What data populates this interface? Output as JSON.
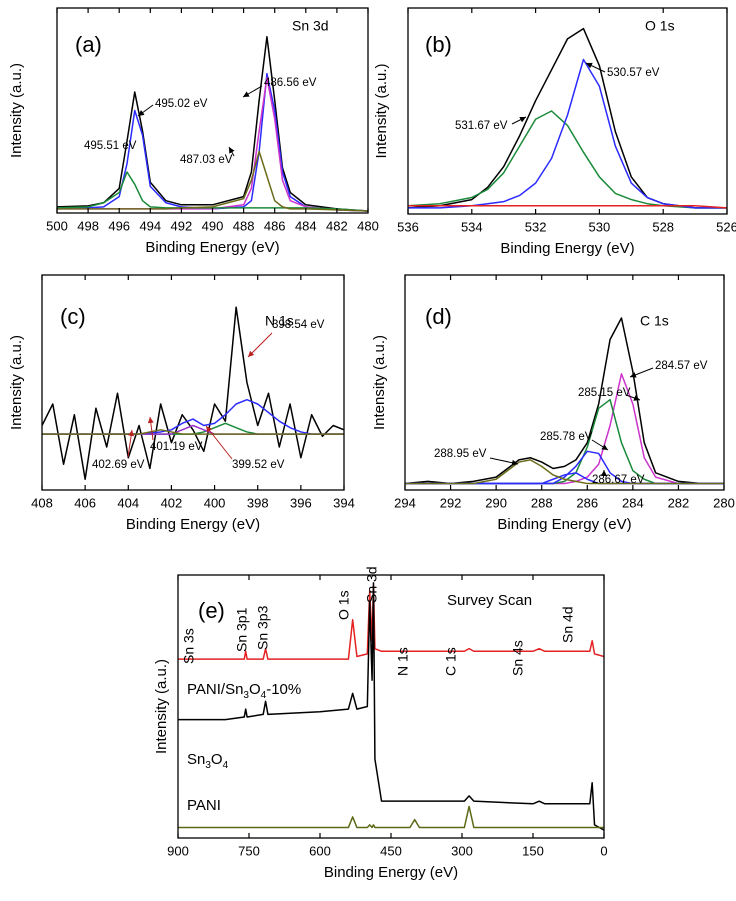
{
  "chart_data": [
    {
      "type": "line",
      "panel": "(a)",
      "title": "Sn 3d",
      "xlabel": "Binding Energy (eV)",
      "ylabel": "Intensity (a.u.)",
      "x": [
        500,
        498,
        497,
        496,
        495.5,
        495,
        494.5,
        494,
        493,
        492,
        490,
        488,
        487.5,
        487,
        486.5,
        486,
        485.5,
        485,
        484,
        482,
        480
      ],
      "xlim": [
        500,
        480
      ],
      "xticks": [
        500,
        498,
        496,
        494,
        492,
        490,
        488,
        486,
        484,
        482,
        480
      ],
      "ylim": [
        0,
        100
      ],
      "series": [
        {
          "color": "#000000",
          "values": [
            3,
            3.5,
            5,
            12,
            35,
            59,
            40,
            15,
            6,
            4,
            4,
            8,
            20,
            55,
            86,
            55,
            22,
            10,
            4,
            2,
            1
          ]
        },
        {
          "color": "#2b2bff",
          "values": [
            2,
            2.5,
            3,
            8,
            24,
            50,
            38,
            13,
            5,
            3,
            2,
            3,
            6,
            30,
            68,
            50,
            20,
            8,
            3,
            1.5,
            1
          ]
        },
        {
          "color": "#cc33cc",
          "values": [
            2,
            2,
            2,
            2,
            2,
            2,
            2,
            2,
            2,
            2,
            2,
            4,
            12,
            40,
            66,
            46,
            16,
            6,
            3,
            1.5,
            1
          ]
        },
        {
          "color": "#1a8a3a",
          "values": [
            2.5,
            3,
            5,
            10,
            20,
            14,
            6,
            3,
            2.5,
            2.5,
            2.5,
            2.5,
            2.5,
            2.5,
            2.5,
            2.5,
            2.5,
            2.5,
            2.5,
            2,
            1
          ]
        },
        {
          "color": "#6b6b1a",
          "values": [
            2,
            2,
            2,
            2,
            2,
            2,
            2,
            2,
            2,
            2.5,
            3,
            7,
            16,
            30,
            18,
            6,
            3,
            2,
            2,
            1.5,
            1
          ]
        }
      ],
      "annotations": [
        "495.51 eV",
        "495.02 eV",
        "486.56 eV",
        "487.03 eV"
      ]
    },
    {
      "type": "line",
      "panel": "(b)",
      "title": "O 1s",
      "xlabel": "Binding Energy (eV)",
      "ylabel": "Intensity (a.u.)",
      "x": [
        536,
        535,
        534,
        533.5,
        533,
        532.5,
        532,
        531.5,
        531,
        530.5,
        530,
        529.5,
        529,
        528.5,
        528,
        527,
        526
      ],
      "xlim": [
        536,
        526
      ],
      "xticks": [
        536,
        534,
        532,
        530,
        528,
        526
      ],
      "ylim": [
        0,
        100
      ],
      "series": [
        {
          "color": "#000000",
          "values": [
            3,
            4,
            7,
            13,
            23,
            38,
            55,
            70,
            85,
            90,
            72,
            40,
            18,
            8,
            5,
            3,
            3
          ]
        },
        {
          "color": "#1a8a3a",
          "values": [
            4,
            5,
            8,
            12,
            20,
            33,
            46,
            50,
            43,
            30,
            18,
            10,
            7,
            5,
            4,
            3,
            3
          ]
        },
        {
          "color": "#2b2bff",
          "values": [
            3,
            3,
            4,
            5,
            6,
            9,
            15,
            27,
            48,
            75,
            62,
            33,
            15,
            8,
            5,
            3,
            3
          ]
        },
        {
          "color": "#e52222",
          "values": [
            4,
            4,
            4,
            4,
            4,
            4,
            4,
            4,
            4,
            4,
            4,
            4,
            4,
            4,
            4,
            4,
            3
          ]
        }
      ],
      "annotations": [
        "531.67 eV",
        "530.57 eV"
      ]
    },
    {
      "type": "line",
      "panel": "(c)",
      "title": "N 1s",
      "xlabel": "Binding Energy (eV)",
      "ylabel": "Intensity (a.u.)",
      "x": [
        408,
        407.5,
        407,
        406.5,
        406,
        405.5,
        405,
        404.5,
        404,
        403.5,
        403,
        402.5,
        402,
        401.5,
        401,
        400.5,
        400,
        399.5,
        399,
        398.5,
        398,
        397.5,
        397,
        396.5,
        396,
        395.5,
        395,
        394.5,
        394
      ],
      "xlim": [
        408,
        394
      ],
      "xticks": [
        408,
        406,
        404,
        402,
        400,
        398,
        396,
        394
      ],
      "ylim": [
        0,
        100
      ],
      "series": [
        {
          "color": "#000000",
          "values": [
            30,
            40,
            12,
            35,
            5,
            38,
            20,
            45,
            15,
            30,
            10,
            40,
            22,
            35,
            28,
            18,
            40,
            32,
            85,
            50,
            30,
            45,
            20,
            40,
            15,
            35,
            25,
            30,
            28
          ]
        },
        {
          "color": "#2b2bff",
          "values": [
            26,
            26,
            26,
            26,
            26,
            26,
            26,
            26,
            26,
            26,
            26.5,
            27,
            28,
            31,
            33,
            30,
            31,
            35,
            40,
            42,
            40,
            36,
            32,
            29,
            27,
            26,
            26,
            26,
            26
          ]
        },
        {
          "color": "#1a8a3a",
          "values": [
            26,
            26,
            26,
            26,
            26,
            26,
            26,
            26,
            26,
            26,
            26,
            26,
            26,
            26,
            26,
            27,
            29,
            31,
            29,
            27,
            26,
            26,
            26,
            26,
            26,
            26,
            26,
            26,
            26
          ]
        },
        {
          "color": "#9933cc",
          "values": [
            26,
            26,
            26,
            26,
            26,
            26,
            26,
            26,
            26,
            26,
            26,
            26,
            26,
            28,
            30,
            28,
            26,
            26,
            26,
            26,
            26,
            26,
            26,
            26,
            26,
            26,
            26,
            26,
            26
          ]
        },
        {
          "color": "#6b6b1a",
          "values": [
            26,
            26,
            26,
            26,
            26,
            26,
            26,
            26,
            26,
            26,
            27,
            28,
            27,
            26,
            26,
            26,
            26,
            26,
            26,
            26,
            26,
            26,
            26,
            26,
            26,
            26,
            26,
            26,
            26
          ]
        }
      ],
      "annotations": [
        "398.54 eV",
        "401.19 eV",
        "402.69 eV",
        "399.52 eV"
      ]
    },
    {
      "type": "line",
      "panel": "(d)",
      "title": "C 1s",
      "xlabel": "Binding Energy (eV)",
      "ylabel": "Intensity (a.u.)",
      "x": [
        294,
        293,
        292,
        291,
        290,
        289.5,
        289,
        288.5,
        288,
        287.5,
        287,
        286.5,
        286,
        285.5,
        285,
        284.5,
        284,
        283.5,
        283,
        282,
        281,
        280
      ],
      "xlim": [
        294,
        280
      ],
      "xticks": [
        294,
        292,
        290,
        288,
        286,
        284,
        282,
        280
      ],
      "ylim": [
        0,
        100
      ],
      "series": [
        {
          "color": "#000000",
          "values": [
            3,
            4,
            3,
            4,
            6,
            10,
            14,
            15,
            13,
            10,
            11,
            14,
            22,
            40,
            70,
            80,
            55,
            22,
            8,
            4,
            3,
            3
          ]
        },
        {
          "color": "#cc33cc",
          "values": [
            3,
            3,
            3,
            3,
            3,
            3,
            3,
            3,
            3,
            3,
            3,
            4,
            6,
            12,
            30,
            54,
            40,
            15,
            6,
            3,
            3,
            3
          ]
        },
        {
          "color": "#1a8a3a",
          "values": [
            3,
            3,
            3,
            3,
            3,
            3,
            3,
            3,
            3,
            3,
            4,
            8,
            20,
            38,
            42,
            22,
            9,
            5,
            3,
            3,
            3,
            3
          ]
        },
        {
          "color": "#2b2bff",
          "values": [
            3,
            3,
            3,
            3,
            3,
            3,
            3,
            3,
            3,
            3,
            6,
            11,
            18,
            17,
            8,
            4,
            3,
            3,
            3,
            3,
            3,
            3
          ]
        },
        {
          "color": "#2b2bff",
          "values": [
            3,
            3,
            3,
            3,
            3,
            3,
            3,
            3,
            3,
            5,
            7,
            8,
            5,
            3,
            3,
            3,
            3,
            3,
            3,
            3,
            3,
            3
          ]
        },
        {
          "color": "#6b6b1a",
          "values": [
            3,
            3,
            3,
            3,
            5,
            9,
            13,
            14,
            11,
            7,
            5,
            4,
            3,
            3,
            3,
            3,
            3,
            3,
            3,
            3,
            3,
            3
          ]
        }
      ],
      "annotations": [
        "284.57 eV",
        "285.15 eV",
        "285.78 eV",
        "288.95 eV",
        "286.67 eV"
      ]
    },
    {
      "type": "line",
      "panel": "(e)",
      "title": "Survey Scan",
      "xlabel": "Binding Energy (eV)",
      "ylabel": "Intensity (a.u.)",
      "x": [
        900,
        800,
        760,
        757,
        754,
        720,
        715,
        710,
        600,
        540,
        531,
        522,
        500,
        495,
        490,
        487,
        484,
        470,
        410,
        400,
        390,
        295,
        285,
        275,
        150,
        137,
        125,
        30,
        25,
        20,
        0
      ],
      "xlim": [
        900,
        0
      ],
      "xticks": [
        900,
        750,
        600,
        450,
        300,
        150,
        0
      ],
      "ylim": [
        0,
        100
      ],
      "series": [
        {
          "name": "PANI/Sn3O4-10%",
          "color": "#e52222",
          "values": [
            68,
            68,
            68,
            71,
            68,
            68,
            72,
            68,
            68,
            68,
            83,
            69,
            70,
            94,
            75,
            96,
            72,
            71,
            71,
            71,
            71,
            71,
            72,
            71,
            71,
            72,
            71,
            71,
            75,
            70,
            69
          ]
        },
        {
          "name": "Sn3O4",
          "color": "#000000",
          "values": [
            45,
            45,
            46,
            49,
            46,
            47,
            52,
            47,
            48,
            49,
            55,
            49,
            50,
            90,
            60,
            97,
            30,
            14,
            14,
            14,
            14,
            14,
            16,
            14,
            13,
            14,
            13,
            13,
            21,
            5,
            3
          ]
        },
        {
          "name": "PANI",
          "color": "#5a6a14",
          "values": [
            4,
            4,
            4,
            4,
            4,
            4,
            4,
            4,
            4,
            4,
            8,
            4,
            4,
            5,
            4,
            5,
            4,
            4,
            4,
            7,
            4,
            4,
            12,
            4,
            4,
            4,
            4,
            4,
            4,
            4,
            4
          ]
        }
      ],
      "annotations": [
        "Sn 3s",
        "Sn 3p1",
        "Sn 3p3",
        "O 1s",
        "Sn 3d",
        "N 1s",
        "C 1s",
        "Sn 4s",
        "Sn 4d"
      ]
    }
  ]
}
